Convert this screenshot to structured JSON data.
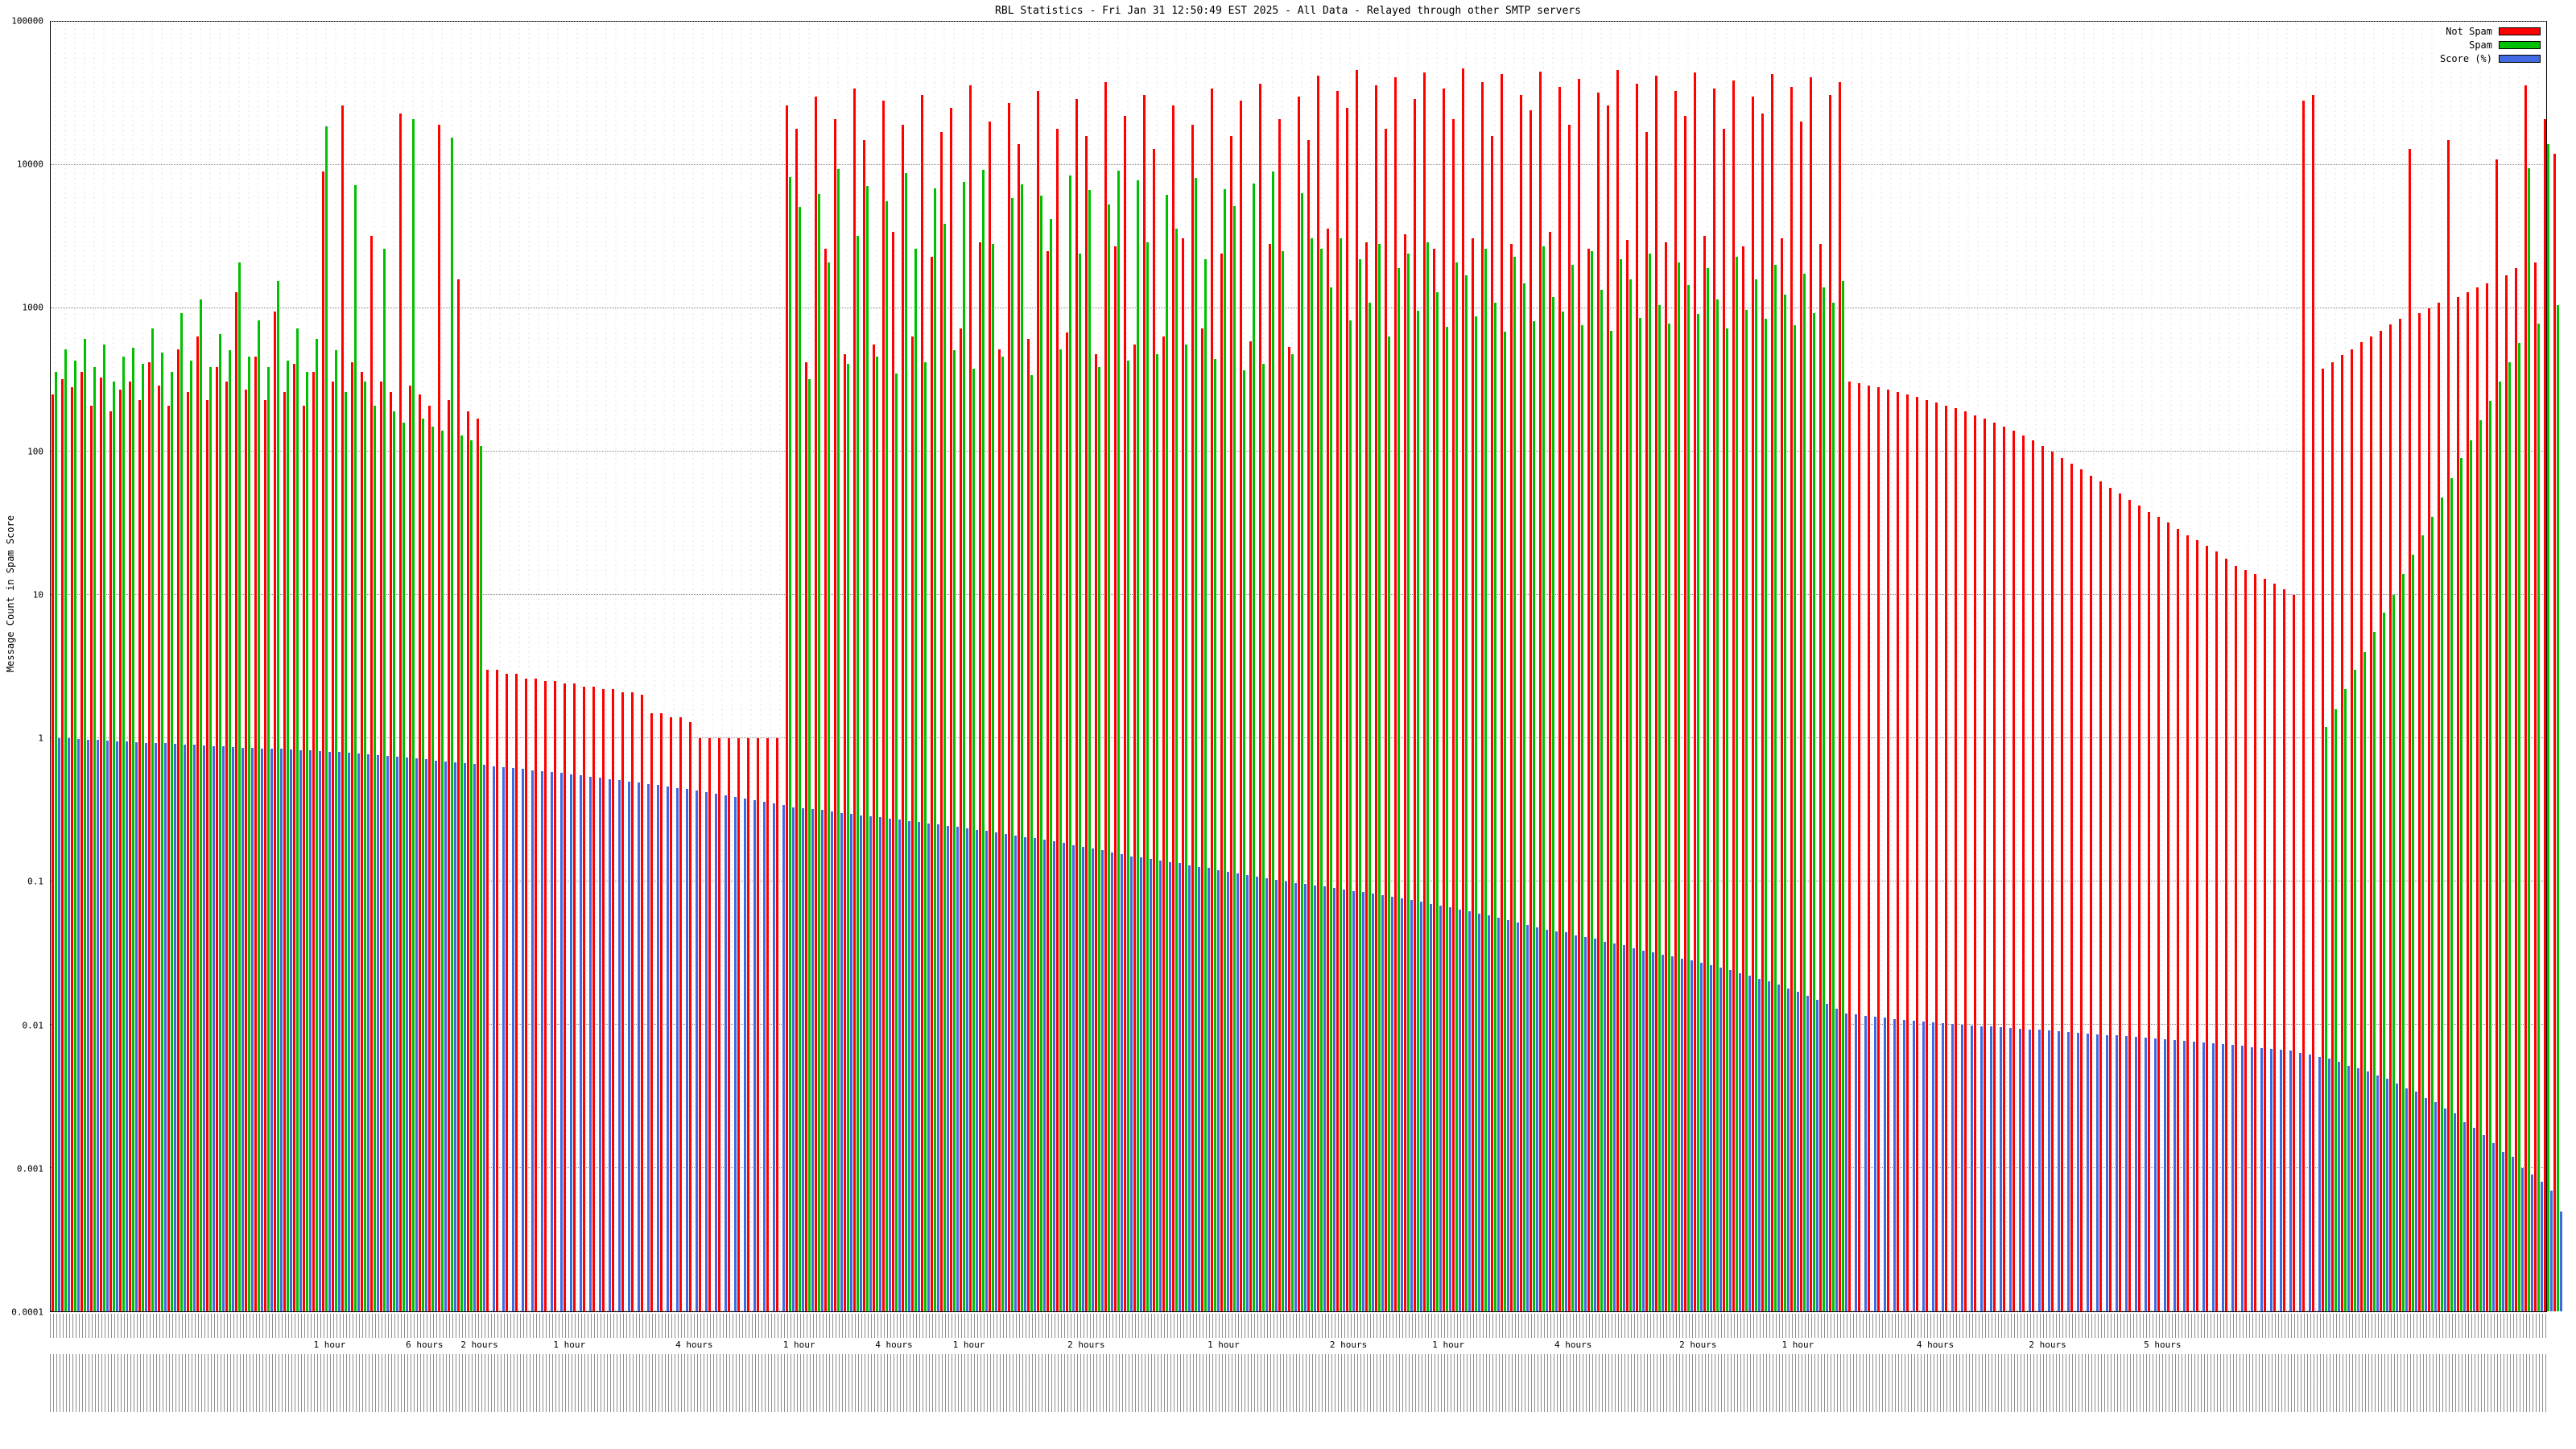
{
  "title": "RBL Statistics - Fri Jan 31 12:50:49 EST 2025 - All Data - Relayed through other SMTP servers",
  "ylabel": "Message Count in Spam Score",
  "legend": [
    {
      "label": "Not Spam",
      "color": "#ff0000"
    },
    {
      "label": "Spam",
      "color": "#00c000"
    },
    {
      "label": "Score (%)",
      "color": "#4169e1"
    }
  ],
  "chart_data": {
    "type": "bar",
    "scale": "log",
    "title": "RBL Statistics - Fri Jan 31 12:50:49 EST 2025 - All Data - Relayed through other SMTP servers",
    "ylabel": "Message Count in Spam Score",
    "ylim": [
      0.0001,
      100000
    ],
    "yticks": [
      100000,
      10000,
      1000,
      100,
      10,
      1,
      0.1,
      0.01,
      0.001,
      0.0001
    ],
    "grid": true,
    "legend_position": "top-right",
    "series": [
      {
        "name": "Not Spam",
        "color": "#ff0000",
        "values": [
          250,
          320,
          280,
          360,
          210,
          330,
          190,
          270,
          310,
          230,
          420,
          290,
          210,
          520,
          260,
          640,
          230,
          390,
          310,
          1300,
          270,
          460,
          230,
          950,
          260,
          410,
          210,
          360,
          9000,
          310,
          26000,
          420,
          360,
          3200,
          310,
          260,
          23000,
          290,
          250,
          210,
          19000,
          230,
          1600,
          190,
          170,
          3,
          3,
          2.8,
          2.8,
          2.6,
          2.6,
          2.5,
          2.5,
          2.4,
          2.4,
          2.3,
          2.3,
          2.2,
          2.2,
          2.1,
          2.1,
          2,
          1.5,
          1.5,
          1.4,
          1.4,
          1.3,
          1,
          1,
          1,
          1,
          1,
          1,
          1,
          1,
          1,
          26000,
          18000,
          420,
          30000,
          2600,
          21000,
          480,
          34000,
          15000,
          560,
          28000,
          3400,
          19000,
          640,
          31000,
          2300,
          17000,
          25000,
          720,
          36000,
          2900,
          20000,
          520,
          27000,
          14000,
          610,
          33000,
          2500,
          18000,
          680,
          29000,
          16000,
          480,
          38000,
          2700,
          22000,
          560,
          31000,
          13000,
          640,
          26000,
          3100,
          19000,
          720,
          34000,
          2400,
          16000,
          28000,
          590,
          37000,
          2800,
          21000,
          540,
          30000,
          15000,
          42000,
          3600,
          33000,
          25000,
          46000,
          2900,
          36000,
          18000,
          41000,
          3300,
          29000,
          44000,
          2600,
          34000,
          21000,
          47000,
          3100,
          38000,
          16000,
          43000,
          2800,
          31000,
          24000,
          45000,
          3400,
          35000,
          19000,
          40000,
          2600,
          32000,
          26000,
          46000,
          3000,
          37000,
          17000,
          42000,
          2900,
          33000,
          22000,
          44000,
          3200,
          34000,
          18000,
          39000,
          2700,
          30000,
          23000,
          43000,
          3100,
          35000,
          20000,
          41000,
          2800,
          31000,
          38000,
          310,
          300,
          290,
          280,
          270,
          260,
          250,
          240,
          230,
          220,
          210,
          200,
          190,
          180,
          170,
          160,
          150,
          140,
          130,
          120,
          110,
          100,
          90,
          82,
          75,
          68,
          62,
          56,
          51,
          46,
          42,
          38,
          35,
          32,
          29,
          26,
          24,
          22,
          20,
          18,
          16,
          15,
          14,
          13,
          12,
          11,
          10,
          28000,
          31000,
          380,
          420,
          470,
          520,
          580,
          640,
          700,
          770,
          850,
          13000,
          930,
          1000,
          1100,
          15000,
          1200,
          1300,
          1400,
          1500,
          11000,
          1700,
          1900,
          36000,
          2100,
          21000,
          12000
        ]
      },
      {
        "name": "Spam",
        "color": "#00c000",
        "values": [
          360,
          520,
          430,
          610,
          390,
          560,
          310,
          460,
          530,
          410,
          720,
          490,
          360,
          930,
          430,
          1150,
          390,
          660,
          510,
          2100,
          460,
          820,
          390,
          1550,
          430,
          720,
          360,
          610,
          18500,
          510,
          260,
          7200,
          310,
          210,
          2600,
          190,
          160,
          21000,
          170,
          150,
          140,
          15500,
          130,
          120,
          110,
          0,
          0,
          0,
          0,
          0,
          0,
          0,
          0,
          0,
          0,
          0,
          0,
          0,
          0,
          0,
          0,
          0,
          0,
          0,
          0,
          0,
          0,
          0,
          0,
          0,
          0,
          0,
          0,
          0,
          0,
          0,
          8200,
          5100,
          320,
          6300,
          2100,
          9400,
          410,
          3200,
          7100,
          460,
          5600,
          350,
          8800,
          2600,
          420,
          6900,
          3900,
          510,
          7600,
          380,
          9200,
          2800,
          460,
          5900,
          7300,
          340,
          6100,
          4200,
          520,
          8400,
          2400,
          6700,
          390,
          5300,
          9100,
          430,
          7800,
          2900,
          480,
          6200,
          3600,
          560,
          8100,
          2200,
          440,
          6800,
          5200,
          370,
          7400,
          410,
          9000,
          2500,
          480,
          6400,
          3100,
          2600,
          1400,
          3100,
          820,
          2200,
          1100,
          2800,
          640,
          1900,
          2400,
          960,
          2900,
          1300,
          740,
          2100,
          1700,
          880,
          2600,
          1100,
          690,
          2300,
          1500,
          810,
          2700,
          1200,
          950,
          2000,
          760,
          2500,
          1350,
          700,
          2200,
          1600,
          860,
          2400,
          1050,
          780,
          2100,
          1450,
          910,
          1900,
          1150,
          720,
          2300,
          980,
          1600,
          840,
          2000,
          1250,
          760,
          1750,
          930,
          1400,
          1100,
          1550,
          0,
          0,
          0,
          0,
          0,
          0,
          0,
          0,
          0,
          0,
          0,
          0,
          0,
          0,
          0,
          0,
          0,
          0,
          0,
          0,
          0,
          0,
          0,
          0,
          0,
          0,
          0,
          0,
          0,
          0,
          0,
          0,
          0,
          0,
          0,
          0,
          0,
          0,
          0,
          0,
          0,
          0,
          0,
          0,
          0,
          0,
          0,
          0,
          0,
          1.2,
          1.6,
          2.2,
          3,
          4,
          5.5,
          7.5,
          10,
          14,
          19,
          26,
          35,
          48,
          65,
          90,
          120,
          165,
          225,
          310,
          420,
          570,
          9500,
          780,
          14000,
          1050
        ]
      },
      {
        "name": "Score (%)",
        "color": "#4169e1",
        "values": [
          1,
          1,
          0.99,
          0.98,
          0.97,
          0.96,
          0.95,
          0.95,
          0.94,
          0.93,
          0.92,
          0.92,
          0.91,
          0.9,
          0.9,
          0.89,
          0.88,
          0.88,
          0.87,
          0.86,
          0.86,
          0.85,
          0.84,
          0.84,
          0.83,
          0.82,
          0.82,
          0.81,
          0.8,
          0.8,
          0.79,
          0.78,
          0.77,
          0.76,
          0.75,
          0.74,
          0.73,
          0.72,
          0.71,
          0.7,
          0.69,
          0.68,
          0.67,
          0.66,
          0.65,
          0.64,
          0.63,
          0.62,
          0.61,
          0.6,
          0.59,
          0.58,
          0.57,
          0.56,
          0.55,
          0.54,
          0.53,
          0.52,
          0.51,
          0.5,
          0.49,
          0.48,
          0.47,
          0.46,
          0.45,
          0.44,
          0.43,
          0.42,
          0.41,
          0.4,
          0.39,
          0.38,
          0.37,
          0.36,
          0.35,
          0.34,
          0.33,
          0.325,
          0.32,
          0.315,
          0.31,
          0.3,
          0.295,
          0.29,
          0.285,
          0.28,
          0.275,
          0.27,
          0.265,
          0.26,
          0.255,
          0.25,
          0.245,
          0.24,
          0.235,
          0.23,
          0.225,
          0.22,
          0.215,
          0.21,
          0.205,
          0.2,
          0.195,
          0.19,
          0.185,
          0.18,
          0.175,
          0.17,
          0.165,
          0.16,
          0.155,
          0.15,
          0.147,
          0.144,
          0.14,
          0.137,
          0.134,
          0.13,
          0.127,
          0.124,
          0.12,
          0.117,
          0.114,
          0.111,
          0.108,
          0.105,
          0.102,
          0.1,
          0.098,
          0.096,
          0.094,
          0.092,
          0.09,
          0.088,
          0.086,
          0.084,
          0.082,
          0.08,
          0.078,
          0.076,
          0.074,
          0.072,
          0.07,
          0.068,
          0.066,
          0.064,
          0.062,
          0.06,
          0.058,
          0.056,
          0.054,
          0.052,
          0.05,
          0.048,
          0.046,
          0.045,
          0.044,
          0.042,
          0.041,
          0.04,
          0.038,
          0.037,
          0.036,
          0.034,
          0.033,
          0.032,
          0.031,
          0.03,
          0.029,
          0.028,
          0.027,
          0.026,
          0.025,
          0.024,
          0.023,
          0.022,
          0.021,
          0.02,
          0.019,
          0.018,
          0.017,
          0.016,
          0.015,
          0.014,
          0.013,
          0.012,
          0.0118,
          0.0116,
          0.0114,
          0.0112,
          0.011,
          0.0108,
          0.0107,
          0.0105,
          0.0104,
          0.0102,
          0.0101,
          0.01,
          0.0099,
          0.0098,
          0.0097,
          0.0096,
          0.0095,
          0.0094,
          0.0093,
          0.0092,
          0.0091,
          0.009,
          0.0089,
          0.0088,
          0.0087,
          0.0086,
          0.0085,
          0.0084,
          0.0083,
          0.0082,
          0.0081,
          0.008,
          0.0079,
          0.0078,
          0.0077,
          0.0076,
          0.0075,
          0.0074,
          0.0073,
          0.0072,
          0.0071,
          0.007,
          0.0069,
          0.0068,
          0.0067,
          0.0066,
          0.0064,
          0.0062,
          0.006,
          0.0058,
          0.0055,
          0.0052,
          0.005,
          0.0047,
          0.0044,
          0.0042,
          0.0039,
          0.0036,
          0.0034,
          0.0031,
          0.0029,
          0.0026,
          0.0024,
          0.0021,
          0.0019,
          0.0017,
          0.0015,
          0.0013,
          0.0012,
          0.001,
          0.0009,
          0.0008,
          0.0007,
          0.0005
        ]
      }
    ],
    "hour_markers": [
      {
        "text": "1 hour",
        "pos": 0.112
      },
      {
        "text": "6 hours",
        "pos": 0.15
      },
      {
        "text": "2 hours",
        "pos": 0.172
      },
      {
        "text": "1 hour",
        "pos": 0.208
      },
      {
        "text": "4 hours",
        "pos": 0.258
      },
      {
        "text": "1 hour",
        "pos": 0.3
      },
      {
        "text": "4 hours",
        "pos": 0.338
      },
      {
        "text": "1 hour",
        "pos": 0.368
      },
      {
        "text": "2 hours",
        "pos": 0.415
      },
      {
        "text": "1 hour",
        "pos": 0.47
      },
      {
        "text": "2 hours",
        "pos": 0.52
      },
      {
        "text": "1 hour",
        "pos": 0.56
      },
      {
        "text": "4 hours",
        "pos": 0.61
      },
      {
        "text": "2 hours",
        "pos": 0.66
      },
      {
        "text": "1 hour",
        "pos": 0.7
      },
      {
        "text": "4 hours",
        "pos": 0.755
      },
      {
        "text": "2 hours",
        "pos": 0.8
      },
      {
        "text": "5 hours",
        "pos": 0.846
      }
    ]
  }
}
